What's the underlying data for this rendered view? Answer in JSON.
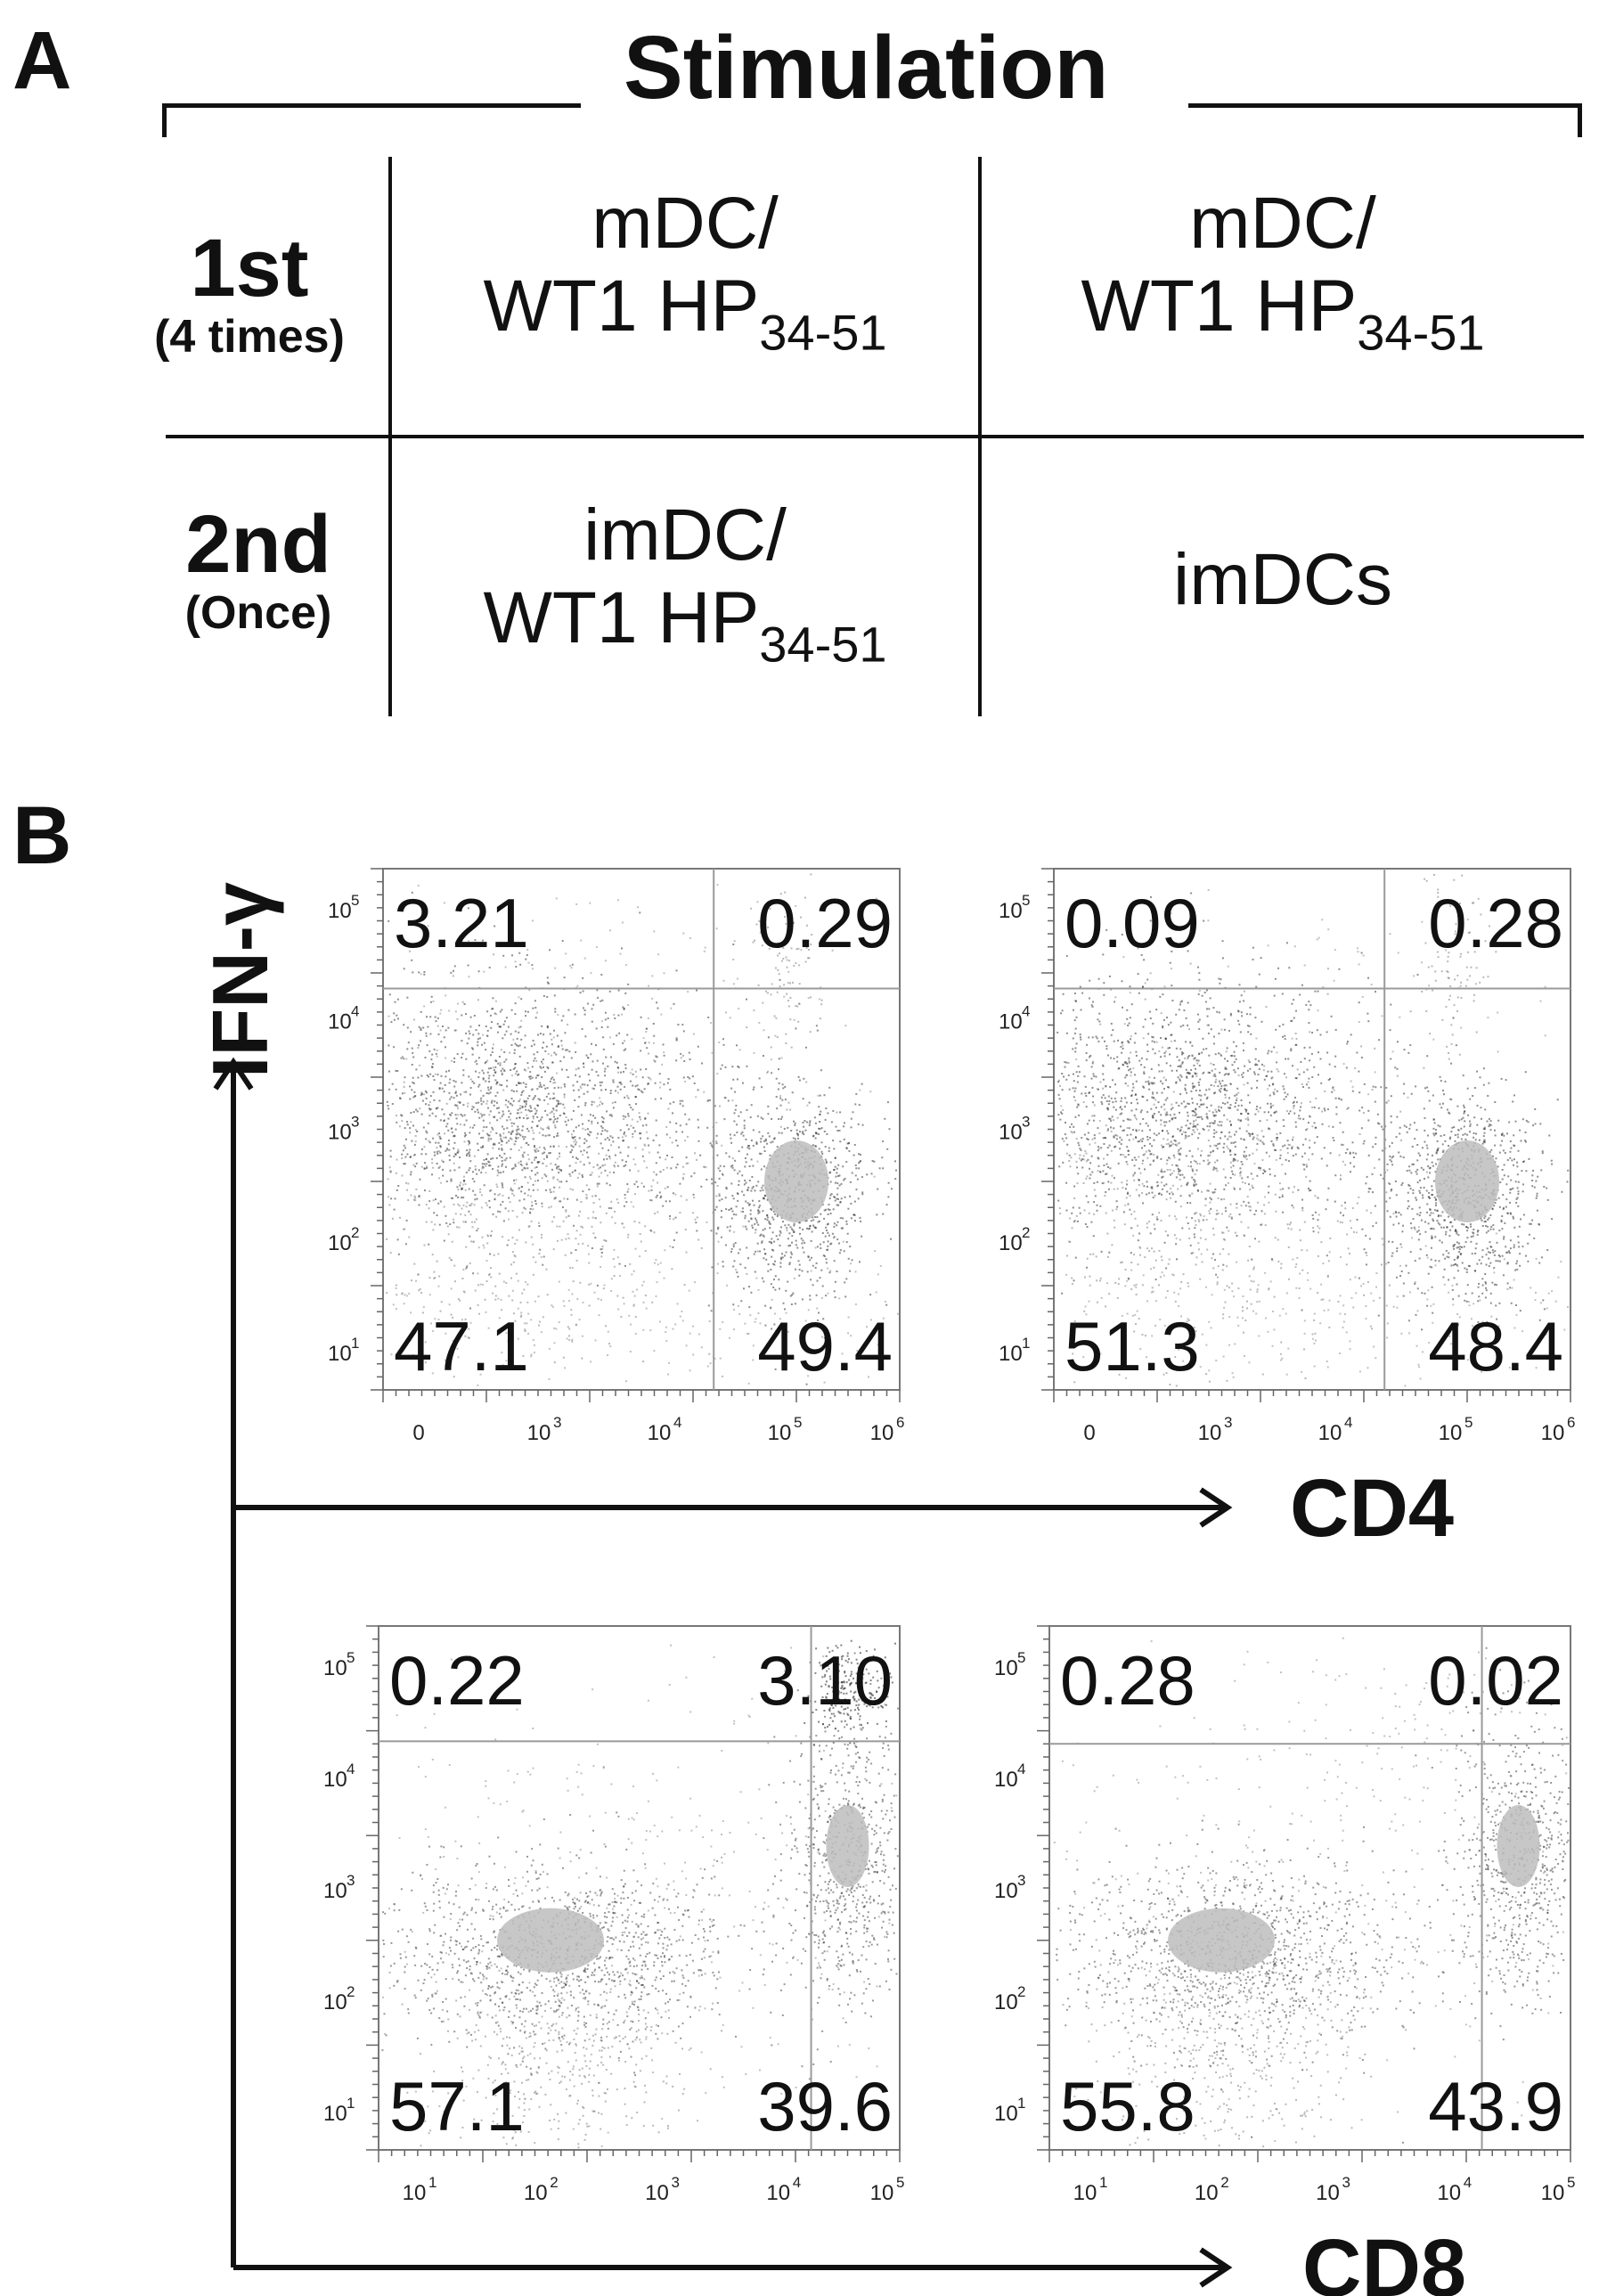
{
  "panel_a": {
    "letter": "A",
    "header": "Stimulation",
    "rows": [
      {
        "label": "1st",
        "sublabel": "(4 times)",
        "cells": [
          {
            "line1": "mDC/",
            "line2": "WT1 HP",
            "subscript": "34-51"
          },
          {
            "line1": "mDC/",
            "line2": "WT1 HP",
            "subscript": "34-51"
          }
        ]
      },
      {
        "label": "2nd",
        "sublabel": "(Once)",
        "cells": [
          {
            "line1": "imDC/",
            "line2": "WT1 HP",
            "subscript": "34-51"
          },
          {
            "line1": "imDCs",
            "line2": "",
            "subscript": ""
          }
        ]
      }
    ]
  },
  "panel_b": {
    "letter": "B",
    "y_axis_label": "IFN-γ",
    "x_axis_labels": [
      "CD4",
      "CD8"
    ],
    "plots": [
      {
        "id": "cd4-left",
        "quadrants": {
          "ul": "3.21",
          "ur": "0.29",
          "ll": "47.1",
          "lr": "49.4"
        },
        "x_ticks": [
          "0",
          "10",
          "10",
          "10",
          "10"
        ],
        "x_tick_exp": [
          "",
          "3",
          "4",
          "5",
          "6"
        ],
        "y_ticks": [
          "10",
          "10",
          "10",
          "10",
          "10"
        ],
        "y_tick_exp": [
          "5",
          "4",
          "3",
          "2",
          "1"
        ]
      },
      {
        "id": "cd4-right",
        "quadrants": {
          "ul": "0.09",
          "ur": "0.28",
          "ll": "51.3",
          "lr": "48.4"
        },
        "x_ticks": [
          "0",
          "10",
          "10",
          "10",
          "10"
        ],
        "x_tick_exp": [
          "",
          "3",
          "4",
          "5",
          "6"
        ],
        "y_ticks": [
          "10",
          "10",
          "10",
          "10",
          "10"
        ],
        "y_tick_exp": [
          "5",
          "4",
          "3",
          "2",
          "1"
        ]
      },
      {
        "id": "cd8-left",
        "quadrants": {
          "ul": "0.22",
          "ur": "3.10",
          "ll": "57.1",
          "lr": "39.6"
        },
        "x_ticks": [
          "10",
          "10",
          "10",
          "10",
          "10"
        ],
        "x_tick_exp": [
          "1",
          "2",
          "3",
          "4",
          "5"
        ],
        "y_ticks": [
          "10",
          "10",
          "10",
          "10",
          "10"
        ],
        "y_tick_exp": [
          "5",
          "4",
          "3",
          "2",
          "1"
        ]
      },
      {
        "id": "cd8-right",
        "quadrants": {
          "ul": "0.28",
          "ur": "0.02",
          "ll": "55.8",
          "lr": "43.9"
        },
        "x_ticks": [
          "10",
          "10",
          "10",
          "10",
          "10"
        ],
        "x_tick_exp": [
          "1",
          "2",
          "3",
          "4",
          "5"
        ],
        "y_ticks": [
          "10",
          "10",
          "10",
          "10",
          "10"
        ],
        "y_tick_exp": [
          "5",
          "4",
          "3",
          "2",
          "1"
        ]
      }
    ]
  },
  "colors": {
    "ink": "#111111",
    "dots": "#333333",
    "dense": "#bdbdbd",
    "gate": "#9a9a9a"
  }
}
